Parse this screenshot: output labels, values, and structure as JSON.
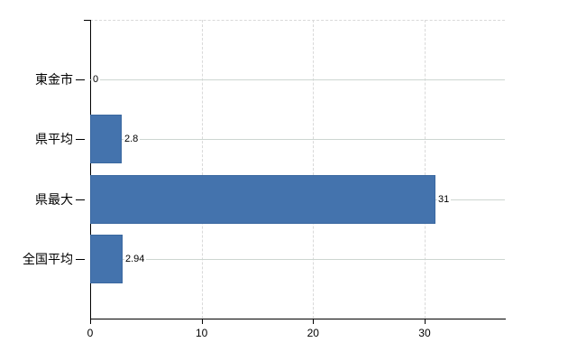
{
  "chart_data": {
    "type": "bar",
    "orientation": "horizontal",
    "title": "",
    "xlabel": "",
    "ylabel": "",
    "categories": [
      "東金市",
      "県平均",
      "県最大",
      "全国平均"
    ],
    "values": [
      0,
      2.8,
      31,
      2.94
    ],
    "value_labels": [
      "0",
      "2.8",
      "31",
      "2.94"
    ],
    "x_ticks": [
      0,
      10,
      20,
      30
    ],
    "x_tick_labels": [
      "0",
      "10",
      "20",
      "30"
    ],
    "xlim": [
      0,
      37.2
    ],
    "grid": true,
    "legend": false,
    "bar_color": "#4473ad",
    "bar_border_color": "#3a68a0",
    "axis_color": "#000000",
    "vertical_gridline_color": "#d9d9d9",
    "category_line_color": "#cdd6d1",
    "text_color": "#000000"
  }
}
